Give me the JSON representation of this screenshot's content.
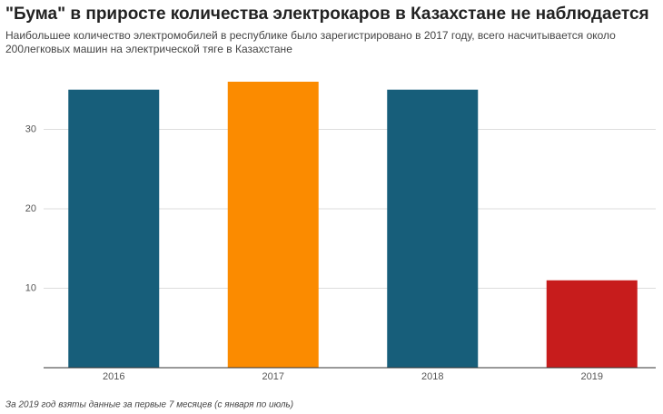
{
  "chart_data": {
    "type": "bar",
    "title": "\"Бума\" в приросте количества электрокаров в Казахстане не наблюдается",
    "subtitle": [
      "Наибольшее количество электромобилей в республике было зарегистрировано в 2017 году, всего насчитывается около",
      "200легковых машин на электрической тяге в Казахстане"
    ],
    "categories": [
      "2016",
      "2017",
      "2018",
      "2019"
    ],
    "values": [
      35,
      36,
      35,
      11
    ],
    "colors": [
      "#175e7a",
      "#fb8b00",
      "#175e7a",
      "#c71c1c"
    ],
    "ylim": [
      0,
      40
    ],
    "yticks": [
      10,
      20,
      30
    ],
    "grid": true,
    "note": "За 2019 год взяты данные за первые 7 месяцев (с января по июль)"
  }
}
